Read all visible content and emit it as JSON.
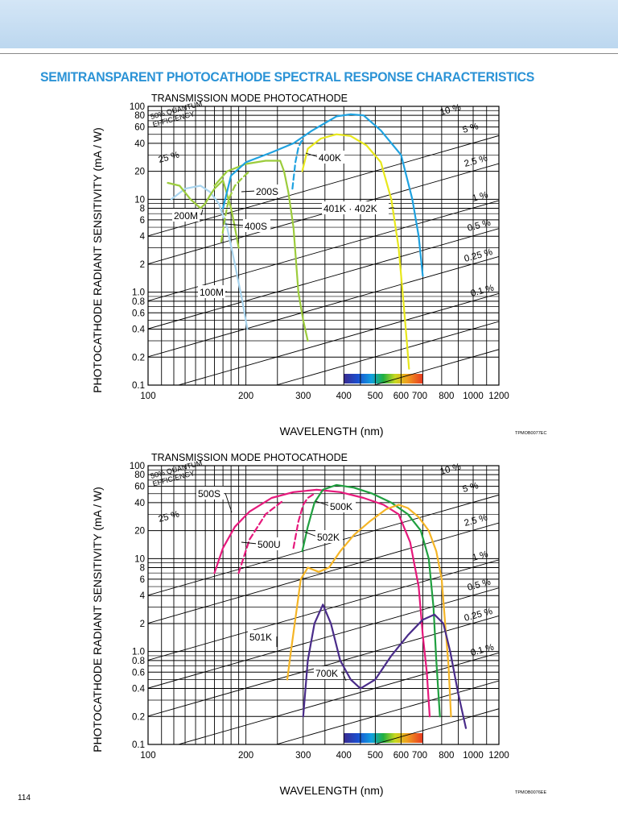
{
  "header": {
    "title": "SEMITRANSPARENT PHOTOCATHODE SPECTRAL RESPONSE CHARACTERISTICS",
    "page_number": "114"
  },
  "colors": {
    "heading": "#2b93d6",
    "band": "#c4dcf2"
  },
  "chart_data": [
    {
      "type": "line",
      "title": "TRANSMISSION MODE PHOTOCATHODE",
      "xlabel": "WAVELENGTH (nm)",
      "ylabel": "PHOTOCATHODE RADIANT SENSITIVITY (mA / W)",
      "xscale": "log",
      "yscale": "log",
      "xlim": [
        100,
        1200
      ],
      "ylim": [
        0.1,
        100
      ],
      "x_ticks": [
        "100",
        "200",
        "300",
        "400",
        "500",
        "600",
        "700",
        "800",
        "1000",
        "1200"
      ],
      "y_ticks": [
        "100",
        "80",
        "60",
        "40",
        "20",
        "10",
        "8",
        "6",
        "4",
        "2",
        "1.0",
        "0.8",
        "0.6",
        "0.4",
        "0.2",
        "0.1"
      ],
      "qe_lines": [
        "50% QUANTUM EFFICIENCY",
        "25 %",
        "10 %",
        "5 %",
        "2.5 %",
        "1 %",
        "0.5 %",
        "0.25 %",
        "0.1 %"
      ],
      "figure_code": "TPMOB0077EC",
      "series": [
        {
          "name": "100M",
          "color": "#a8d4ee",
          "points": [
            [
              118,
              10
            ],
            [
              130,
              13
            ],
            [
              145,
              14
            ],
            [
              155,
              12
            ],
            [
              165,
              9
            ],
            [
              175,
              5
            ],
            [
              185,
              2
            ],
            [
              195,
              0.8
            ],
            [
              202,
              0.4
            ]
          ]
        },
        {
          "name": "200M",
          "color": "#9ccc3c",
          "points": [
            [
              115,
              15
            ],
            [
              125,
              14
            ],
            [
              135,
              10
            ],
            [
              145,
              8
            ],
            [
              150,
              9
            ],
            [
              155,
              11
            ],
            [
              160,
              13
            ],
            [
              170,
              16
            ],
            [
              180,
              8
            ],
            [
              185,
              5
            ],
            [
              190,
              3
            ]
          ]
        },
        {
          "name": "200S",
          "color": "#9ccc3c",
          "points": [
            [
              160,
              14
            ],
            [
              175,
              20
            ],
            [
              200,
              24
            ],
            [
              230,
              26
            ],
            [
              255,
              26
            ],
            [
              262,
              20
            ],
            [
              270,
              12
            ],
            [
              280,
              5
            ],
            [
              290,
              1
            ],
            [
              300,
              0.5
            ],
            [
              310,
              0.3
            ]
          ]
        },
        {
          "name": "400S",
          "color": "#9ccc3c",
          "dashed": true,
          "points": [
            [
              168,
              3.5
            ],
            [
              172,
              6
            ],
            [
              177,
              10
            ],
            [
              185,
              14
            ],
            [
              195,
              17
            ],
            [
              205,
              20
            ]
          ]
        },
        {
          "name": "400K",
          "color": "#1fa2e0",
          "points": [
            [
              170,
              8
            ],
            [
              180,
              18
            ],
            [
              200,
              25
            ],
            [
              240,
              32
            ],
            [
              280,
              40
            ],
            [
              320,
              55
            ],
            [
              380,
              78
            ],
            [
              420,
              82
            ],
            [
              460,
              80
            ],
            [
              520,
              55
            ],
            [
              600,
              30
            ],
            [
              650,
              10
            ],
            [
              680,
              4
            ],
            [
              700,
              1.5
            ]
          ]
        },
        {
          "name": "401K · 402K",
          "color": "#1fa2e0",
          "dashed": true,
          "points": [
            [
              278,
              13
            ],
            [
              284,
              25
            ],
            [
              290,
              36
            ],
            [
              296,
              42
            ],
            [
              302,
              44
            ]
          ]
        },
        {
          "name": "402K",
          "color": "#e8e81c",
          "points": [
            [
              298,
              20
            ],
            [
              310,
              35
            ],
            [
              340,
              45
            ],
            [
              380,
              50
            ],
            [
              420,
              48
            ],
            [
              470,
              38
            ],
            [
              520,
              25
            ],
            [
              560,
              10
            ],
            [
              590,
              3
            ],
            [
              610,
              0.8
            ],
            [
              625,
              0.3
            ],
            [
              635,
              0.15
            ]
          ]
        }
      ]
    },
    {
      "type": "line",
      "title": "TRANSMISSION MODE PHOTOCATHODE",
      "xlabel": "WAVELENGTH (nm)",
      "ylabel": "PHOTOCATHODE RADIANT SENSITIVITY (mA / W)",
      "xscale": "log",
      "yscale": "log",
      "xlim": [
        100,
        1200
      ],
      "ylim": [
        0.1,
        100
      ],
      "x_ticks": [
        "100",
        "200",
        "300",
        "400",
        "500",
        "600",
        "700",
        "800",
        "1000",
        "1200"
      ],
      "y_ticks": [
        "100",
        "80",
        "60",
        "40",
        "20",
        "10",
        "8",
        "6",
        "4",
        "2",
        "1.0",
        "0.8",
        "0.6",
        "0.4",
        "0.2",
        "0.1"
      ],
      "qe_lines": [
        "50% QUANTUM EFFICIENCY",
        "25 %",
        "10 %",
        "5 %",
        "2.5 %",
        "1 %",
        "0.5 %",
        "0.25 %",
        "0.1 %"
      ],
      "figure_code": "TPMOB0076EE",
      "series": [
        {
          "name": "500S",
          "color": "#e6197c",
          "points": [
            [
              160,
              7
            ],
            [
              170,
              13
            ],
            [
              185,
              22
            ],
            [
              205,
              32
            ],
            [
              240,
              45
            ],
            [
              280,
              52
            ],
            [
              330,
              55
            ],
            [
              390,
              52
            ],
            [
              460,
              45
            ],
            [
              530,
              38
            ],
            [
              590,
              30
            ],
            [
              640,
              15
            ],
            [
              680,
              5
            ],
            [
              700,
              1.5
            ],
            [
              720,
              0.6
            ],
            [
              735,
              0.2
            ]
          ]
        },
        {
          "name": "500U",
          "color": "#e6197c",
          "dashed": true,
          "points": [
            [
              190,
              7
            ],
            [
              205,
              16
            ],
            [
              230,
              30
            ],
            [
              260,
              42
            ]
          ]
        },
        {
          "name": "502K",
          "color": "#e6197c",
          "dashed": true,
          "points": [
            [
              280,
              13
            ],
            [
              290,
              25
            ],
            [
              300,
              38
            ],
            [
              310,
              45
            ],
            [
              325,
              50
            ]
          ]
        },
        {
          "name": "500K",
          "color": "#20a040",
          "points": [
            [
              298,
              12
            ],
            [
              310,
              22
            ],
            [
              325,
              40
            ],
            [
              345,
              55
            ],
            [
              380,
              62
            ],
            [
              430,
              58
            ],
            [
              490,
              50
            ],
            [
              560,
              40
            ],
            [
              630,
              30
            ],
            [
              690,
              20
            ],
            [
              730,
              10
            ],
            [
              755,
              3
            ],
            [
              770,
              0.8
            ],
            [
              790,
              0.2
            ]
          ]
        },
        {
          "name": "501K",
          "color": "#f5b526",
          "points": [
            [
              268,
              0.5
            ],
            [
              275,
              1
            ],
            [
              285,
              2.5
            ],
            [
              295,
              6
            ],
            [
              310,
              8
            ],
            [
              335,
              7.2
            ],
            [
              360,
              8
            ],
            [
              390,
              12
            ],
            [
              430,
              18
            ],
            [
              480,
              25
            ],
            [
              540,
              34
            ],
            [
              590,
              38
            ],
            [
              630,
              35
            ],
            [
              680,
              28
            ],
            [
              730,
              20
            ],
            [
              770,
              12
            ],
            [
              800,
              6
            ],
            [
              820,
              2
            ],
            [
              840,
              0.7
            ],
            [
              855,
              0.2
            ]
          ]
        },
        {
          "name": "700K",
          "color": "#4a2c8a",
          "points": [
            [
              300,
              0.2
            ],
            [
              310,
              0.8
            ],
            [
              325,
              2
            ],
            [
              345,
              3.2
            ],
            [
              365,
              2
            ],
            [
              390,
              0.8
            ],
            [
              420,
              0.5
            ],
            [
              450,
              0.4
            ],
            [
              500,
              0.5
            ],
            [
              560,
              0.9
            ],
            [
              630,
              1.5
            ],
            [
              700,
              2.2
            ],
            [
              760,
              2.5
            ],
            [
              810,
              2
            ],
            [
              850,
              1
            ],
            [
              900,
              0.35
            ],
            [
              950,
              0.15
            ]
          ]
        }
      ]
    }
  ]
}
